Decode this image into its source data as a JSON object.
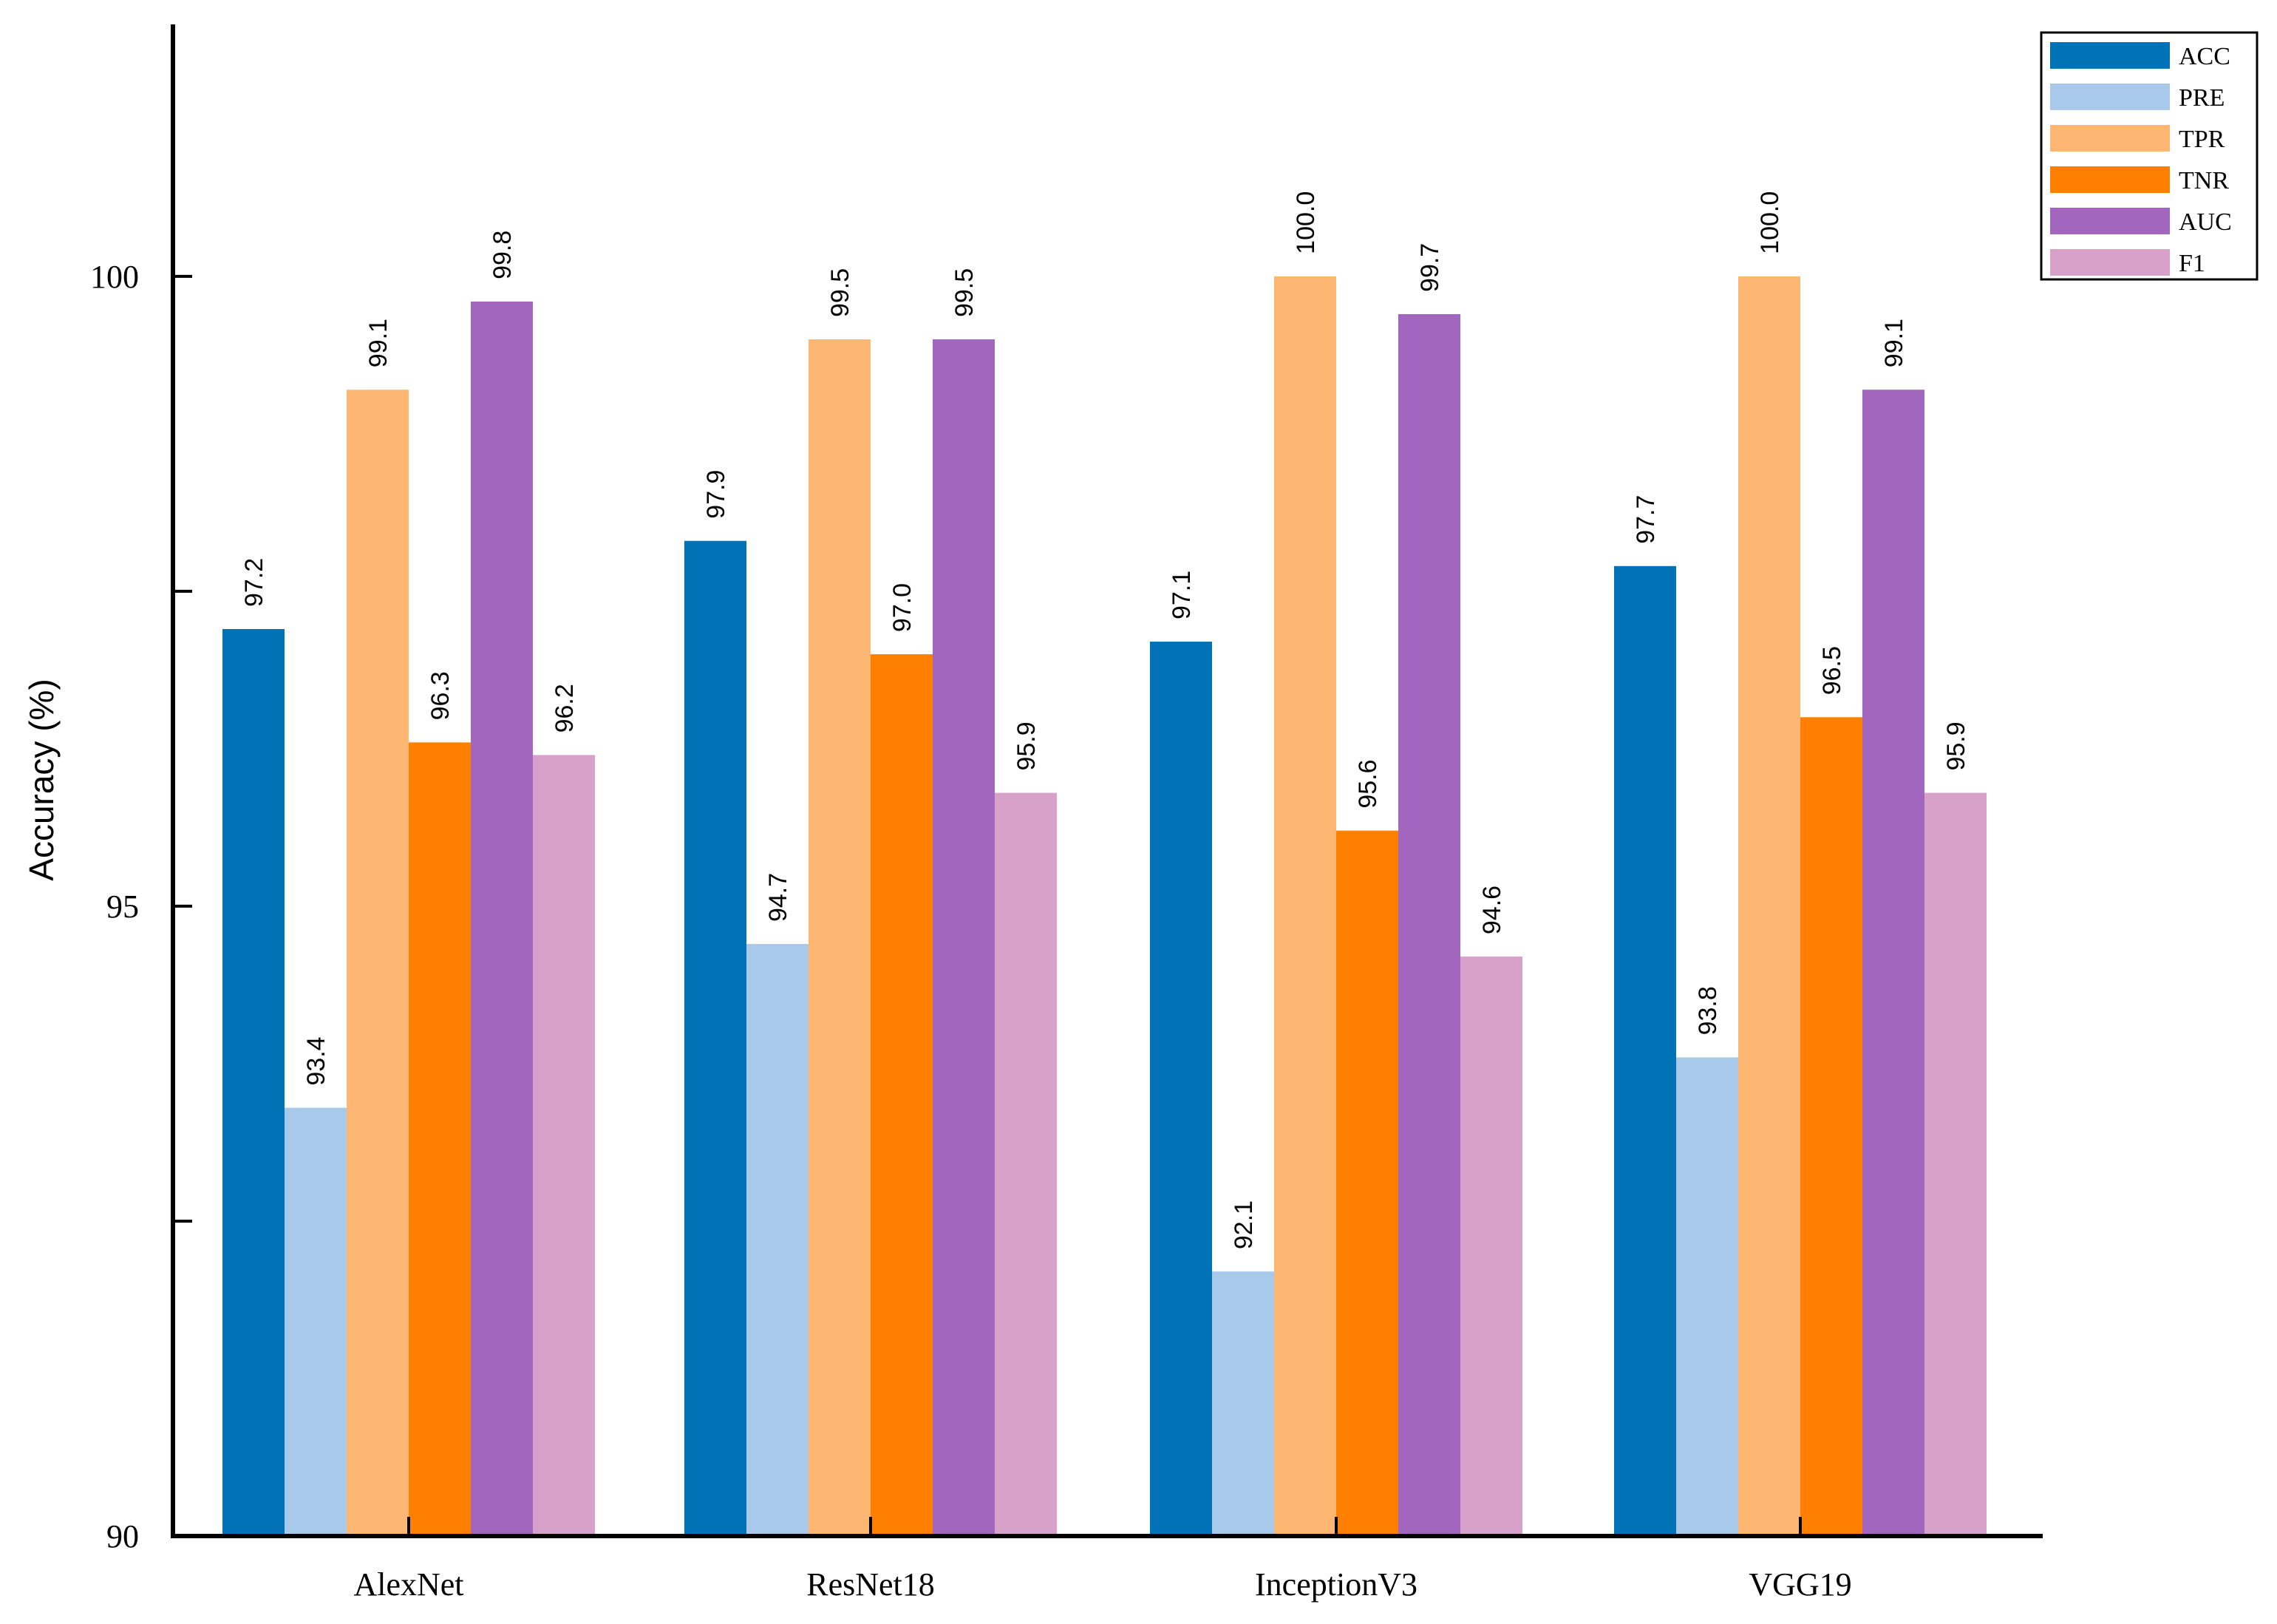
{
  "chart_data": {
    "type": "bar",
    "title": "",
    "xlabel": "",
    "ylabel": "Accuracy (%)",
    "ylim": [
      90,
      102
    ],
    "yticks": [
      90,
      95,
      100
    ],
    "yticks_minor": [
      92.5,
      97.5
    ],
    "categories": [
      "AlexNet",
      "ResNet18",
      "InceptionV3",
      "VGG19"
    ],
    "series": [
      {
        "name": "ACC",
        "color": "#0072b5",
        "values": [
          97.2,
          97.9,
          97.1,
          97.7
        ],
        "labels": [
          "97.2",
          "97.9",
          "97.1",
          "97.7"
        ]
      },
      {
        "name": "PRE",
        "color": "#a8c9ea",
        "values": [
          93.4,
          94.7,
          92.1,
          93.8
        ],
        "labels": [
          "93.4",
          "94.7",
          "92.1",
          "93.8"
        ]
      },
      {
        "name": "TPR",
        "color": "#feb773",
        "values": [
          99.1,
          99.5,
          100.0,
          100.0
        ],
        "labels": [
          "99.1",
          "99.5",
          "100.0",
          "100.0"
        ]
      },
      {
        "name": "TNR",
        "color": "#ff7f00",
        "values": [
          96.3,
          97.0,
          95.6,
          96.5
        ],
        "labels": [
          "96.3",
          "97.0",
          "95.6",
          "96.5"
        ]
      },
      {
        "name": "AUC",
        "color": "#a366bf",
        "values": [
          99.8,
          99.5,
          99.7,
          99.1
        ],
        "labels": [
          "99.8",
          "99.5",
          "99.7",
          "99.1"
        ]
      },
      {
        "name": "F1",
        "color": "#d7a1c9",
        "values": [
          96.2,
          95.9,
          94.6,
          95.9
        ],
        "labels": [
          "96.2",
          "95.9",
          "94.6",
          "95.9"
        ]
      }
    ],
    "legend_position": "top-right",
    "grid": false
  }
}
